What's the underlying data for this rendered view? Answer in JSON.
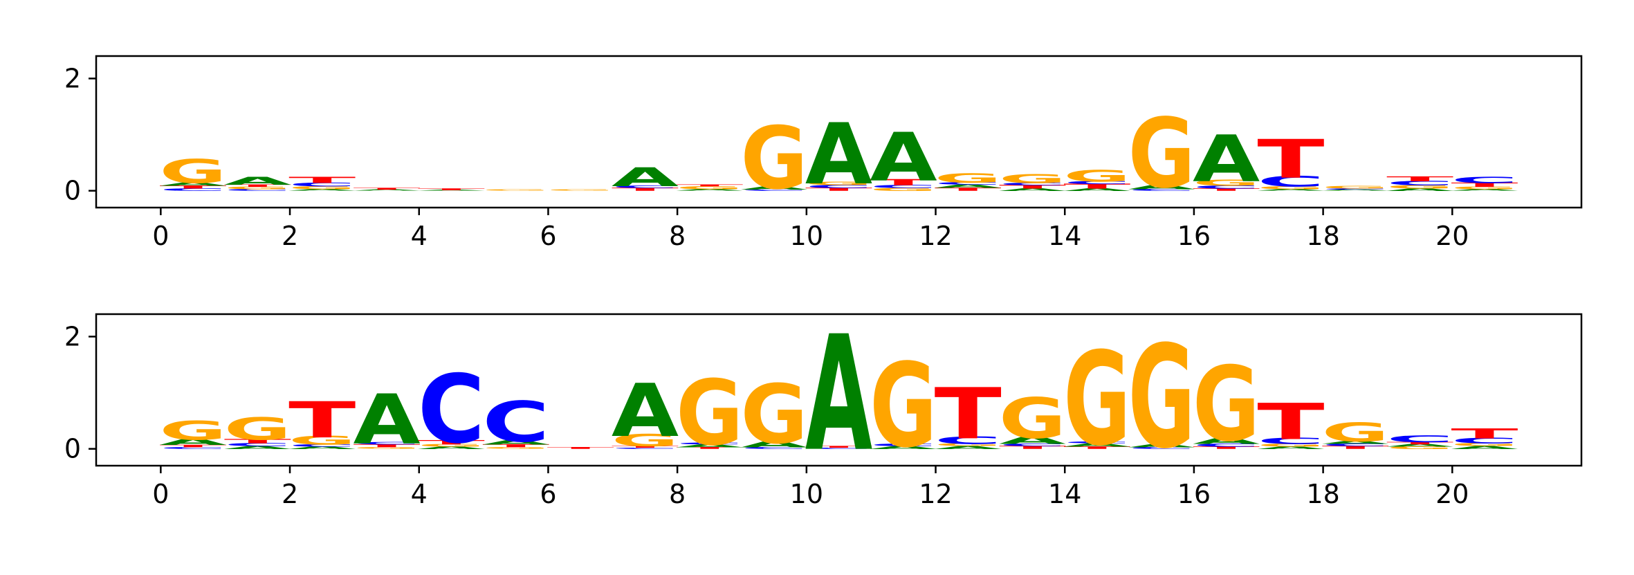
{
  "colors": {
    "A": "#008000",
    "C": "#0000ff",
    "G": "#ffa500",
    "T": "#ff0000"
  },
  "chart_data": [
    {
      "type": "sequence-logo",
      "xlim": [
        -1,
        22
      ],
      "ylim": [
        -0.3,
        2.4
      ],
      "xticks": [
        "0",
        "2",
        "4",
        "6",
        "8",
        "10",
        "12",
        "14",
        "16",
        "18",
        "20"
      ],
      "yticks": [
        "0",
        "2"
      ],
      "positions": [
        {
          "x": 0.5,
          "stack": [
            {
              "l": "C",
              "h": 0.04
            },
            {
              "l": "T",
              "h": 0.05
            },
            {
              "l": "A",
              "h": 0.06
            },
            {
              "l": "G",
              "h": 0.38
            }
          ]
        },
        {
          "x": 1.5,
          "stack": [
            {
              "l": "C",
              "h": 0.03
            },
            {
              "l": "G",
              "h": 0.04
            },
            {
              "l": "T",
              "h": 0.04
            },
            {
              "l": "A",
              "h": 0.13
            }
          ]
        },
        {
          "x": 2.5,
          "stack": [
            {
              "l": "A",
              "h": 0.03
            },
            {
              "l": "G",
              "h": 0.05
            },
            {
              "l": "C",
              "h": 0.06
            },
            {
              "l": "T",
              "h": 0.1
            }
          ]
        },
        {
          "x": 3.5,
          "stack": [
            {
              "l": "A",
              "h": 0.02
            },
            {
              "l": "T",
              "h": 0.03
            }
          ]
        },
        {
          "x": 4.5,
          "stack": [
            {
              "l": "A",
              "h": 0.01
            },
            {
              "l": "T",
              "h": 0.03
            }
          ]
        },
        {
          "x": 5.5,
          "stack": [
            {
              "l": "G",
              "h": 0.02
            }
          ]
        },
        {
          "x": 6.5,
          "stack": [
            {
              "l": "G",
              "h": 0.02
            }
          ]
        },
        {
          "x": 7.5,
          "stack": [
            {
              "l": "T",
              "h": 0.05
            },
            {
              "l": "C",
              "h": 0.04
            },
            {
              "l": "A",
              "h": 0.3
            }
          ]
        },
        {
          "x": 8.5,
          "stack": [
            {
              "l": "A",
              "h": 0.03
            },
            {
              "l": "G",
              "h": 0.05
            },
            {
              "l": "T",
              "h": 0.03
            }
          ]
        },
        {
          "x": 9.5,
          "stack": [
            {
              "l": "C",
              "h": 0.02
            },
            {
              "l": "A",
              "h": 0.06
            },
            {
              "l": "G",
              "h": 1.0
            }
          ]
        },
        {
          "x": 10.5,
          "stack": [
            {
              "l": "T",
              "h": 0.05
            },
            {
              "l": "C",
              "h": 0.05
            },
            {
              "l": "G",
              "h": 0.06
            },
            {
              "l": "A",
              "h": 0.98
            }
          ]
        },
        {
          "x": 11.5,
          "stack": [
            {
              "l": "G",
              "h": 0.05
            },
            {
              "l": "C",
              "h": 0.05
            },
            {
              "l": "T",
              "h": 0.1
            },
            {
              "l": "A",
              "h": 0.78
            }
          ]
        },
        {
          "x": 12.5,
          "stack": [
            {
              "l": "T",
              "h": 0.05
            },
            {
              "l": "A",
              "h": 0.06
            },
            {
              "l": "C",
              "h": 0.04
            },
            {
              "l": "G",
              "h": 0.15
            }
          ]
        },
        {
          "x": 13.5,
          "stack": [
            {
              "l": "A",
              "h": 0.04
            },
            {
              "l": "T",
              "h": 0.06
            },
            {
              "l": "C",
              "h": 0.04
            },
            {
              "l": "G",
              "h": 0.14
            }
          ]
        },
        {
          "x": 14.5,
          "stack": [
            {
              "l": "A",
              "h": 0.04
            },
            {
              "l": "T",
              "h": 0.08
            },
            {
              "l": "C",
              "h": 0.05
            },
            {
              "l": "G",
              "h": 0.19
            }
          ]
        },
        {
          "x": 15.5,
          "stack": [
            {
              "l": "C",
              "h": 0.03
            },
            {
              "l": "A",
              "h": 0.07
            },
            {
              "l": "G",
              "h": 1.12
            }
          ]
        },
        {
          "x": 16.5,
          "stack": [
            {
              "l": "T",
              "h": 0.04
            },
            {
              "l": "C",
              "h": 0.05
            },
            {
              "l": "G",
              "h": 0.1
            },
            {
              "l": "A",
              "h": 0.75
            }
          ]
        },
        {
          "x": 17.5,
          "stack": [
            {
              "l": "A",
              "h": 0.03
            },
            {
              "l": "G",
              "h": 0.05
            },
            {
              "l": "C",
              "h": 0.17
            },
            {
              "l": "T",
              "h": 0.62
            }
          ]
        },
        {
          "x": 18.5,
          "stack": [
            {
              "l": "A",
              "h": 0.02
            },
            {
              "l": "C",
              "h": 0.02
            },
            {
              "l": "G",
              "h": 0.04
            }
          ]
        },
        {
          "x": 19.5,
          "stack": [
            {
              "l": "A",
              "h": 0.04
            },
            {
              "l": "G",
              "h": 0.06
            },
            {
              "l": "C",
              "h": 0.07
            },
            {
              "l": "T",
              "h": 0.08
            }
          ]
        },
        {
          "x": 20.5,
          "stack": [
            {
              "l": "A",
              "h": 0.03
            },
            {
              "l": "G",
              "h": 0.04
            },
            {
              "l": "T",
              "h": 0.07
            },
            {
              "l": "C",
              "h": 0.1
            }
          ]
        }
      ]
    },
    {
      "type": "sequence-logo",
      "xlim": [
        -1,
        22
      ],
      "ylim": [
        -0.3,
        2.4
      ],
      "xticks": [
        "0",
        "2",
        "4",
        "6",
        "8",
        "10",
        "12",
        "14",
        "16",
        "18",
        "20"
      ],
      "yticks": [
        "0",
        "2"
      ],
      "positions": [
        {
          "x": 0.5,
          "stack": [
            {
              "l": "C",
              "h": 0.03
            },
            {
              "l": "T",
              "h": 0.04
            },
            {
              "l": "A",
              "h": 0.1
            },
            {
              "l": "G",
              "h": 0.3
            }
          ]
        },
        {
          "x": 1.5,
          "stack": [
            {
              "l": "A",
              "h": 0.05
            },
            {
              "l": "C",
              "h": 0.05
            },
            {
              "l": "T",
              "h": 0.07
            },
            {
              "l": "G",
              "h": 0.36
            }
          ]
        },
        {
          "x": 2.5,
          "stack": [
            {
              "l": "A",
              "h": 0.04
            },
            {
              "l": "C",
              "h": 0.04
            },
            {
              "l": "G",
              "h": 0.14
            },
            {
              "l": "T",
              "h": 0.58
            }
          ]
        },
        {
          "x": 3.5,
          "stack": [
            {
              "l": "G",
              "h": 0.03
            },
            {
              "l": "T",
              "h": 0.05
            },
            {
              "l": "C",
              "h": 0.04
            },
            {
              "l": "A",
              "h": 0.8
            }
          ]
        },
        {
          "x": 4.5,
          "stack": [
            {
              "l": "A",
              "h": 0.04
            },
            {
              "l": "G",
              "h": 0.04
            },
            {
              "l": "T",
              "h": 0.07
            },
            {
              "l": "C",
              "h": 1.1
            }
          ]
        },
        {
          "x": 5.5,
          "stack": [
            {
              "l": "G",
              "h": 0.03
            },
            {
              "l": "T",
              "h": 0.05
            },
            {
              "l": "A",
              "h": 0.07
            },
            {
              "l": "C",
              "h": 0.65
            }
          ]
        },
        {
          "x": 6.5,
          "stack": [
            {
              "l": "T",
              "h": 0.03
            }
          ]
        },
        {
          "x": 7.5,
          "stack": [
            {
              "l": "C",
              "h": 0.02
            },
            {
              "l": "T",
              "h": 0.03
            },
            {
              "l": "G",
              "h": 0.2
            },
            {
              "l": "A",
              "h": 0.85
            }
          ]
        },
        {
          "x": 8.5,
          "stack": [
            {
              "l": "T",
              "h": 0.03
            },
            {
              "l": "A",
              "h": 0.05
            },
            {
              "l": "C",
              "h": 0.03
            },
            {
              "l": "G",
              "h": 1.05
            }
          ]
        },
        {
          "x": 9.5,
          "stack": [
            {
              "l": "C",
              "h": 0.03
            },
            {
              "l": "A",
              "h": 0.1
            },
            {
              "l": "G",
              "h": 0.95
            }
          ]
        },
        {
          "x": 10.5,
          "stack": [
            {
              "l": "C",
              "h": 0.02
            },
            {
              "l": "T",
              "h": 0.03
            },
            {
              "l": "A",
              "h": 1.85
            }
          ]
        },
        {
          "x": 11.5,
          "stack": [
            {
              "l": "A",
              "h": 0.05
            },
            {
              "l": "C",
              "h": 0.04
            },
            {
              "l": "G",
              "h": 1.35
            }
          ]
        },
        {
          "x": 12.5,
          "stack": [
            {
              "l": "A",
              "h": 0.05
            },
            {
              "l": "G",
              "h": 0.04
            },
            {
              "l": "C",
              "h": 0.12
            },
            {
              "l": "T",
              "h": 0.82
            }
          ]
        },
        {
          "x": 13.5,
          "stack": [
            {
              "l": "T",
              "h": 0.05
            },
            {
              "l": "C",
              "h": 0.04
            },
            {
              "l": "A",
              "h": 0.12
            },
            {
              "l": "G",
              "h": 0.65
            }
          ]
        },
        {
          "x": 14.5,
          "stack": [
            {
              "l": "T",
              "h": 0.04
            },
            {
              "l": "A",
              "h": 0.06
            },
            {
              "l": "C",
              "h": 0.03
            },
            {
              "l": "G",
              "h": 1.5
            }
          ]
        },
        {
          "x": 15.5,
          "stack": [
            {
              "l": "C",
              "h": 0.03
            },
            {
              "l": "A",
              "h": 0.06
            },
            {
              "l": "G",
              "h": 1.65
            }
          ]
        },
        {
          "x": 16.5,
          "stack": [
            {
              "l": "T",
              "h": 0.04
            },
            {
              "l": "C",
              "h": 0.05
            },
            {
              "l": "A",
              "h": 0.1
            },
            {
              "l": "G",
              "h": 1.2
            }
          ]
        },
        {
          "x": 17.5,
          "stack": [
            {
              "l": "A",
              "h": 0.04
            },
            {
              "l": "G",
              "h": 0.05
            },
            {
              "l": "C",
              "h": 0.1
            },
            {
              "l": "T",
              "h": 0.58
            }
          ]
        },
        {
          "x": 18.5,
          "stack": [
            {
              "l": "T",
              "h": 0.05
            },
            {
              "l": "C",
              "h": 0.04
            },
            {
              "l": "A",
              "h": 0.05
            },
            {
              "l": "G",
              "h": 0.3
            }
          ]
        },
        {
          "x": 19.5,
          "stack": [
            {
              "l": "G",
              "h": 0.04
            },
            {
              "l": "A",
              "h": 0.04
            },
            {
              "l": "T",
              "h": 0.04
            },
            {
              "l": "C",
              "h": 0.11
            }
          ]
        },
        {
          "x": 20.5,
          "stack": [
            {
              "l": "A",
              "h": 0.05
            },
            {
              "l": "G",
              "h": 0.05
            },
            {
              "l": "C",
              "h": 0.09
            },
            {
              "l": "T",
              "h": 0.16
            }
          ]
        }
      ]
    }
  ]
}
